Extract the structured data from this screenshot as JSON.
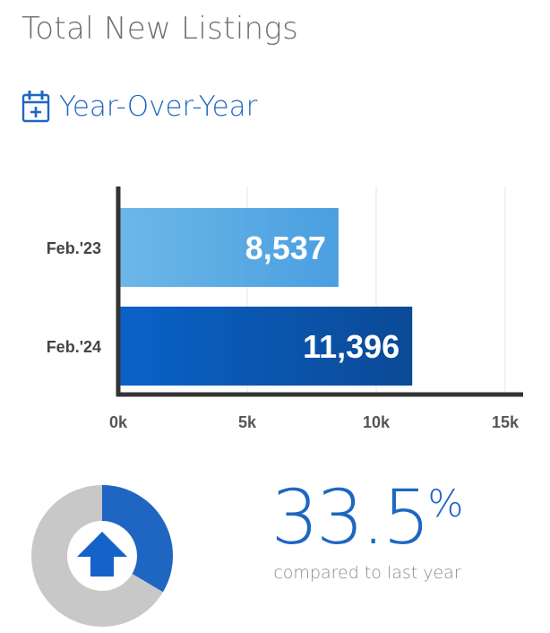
{
  "header": {
    "title": "Total New Listings",
    "subtitle": "Year-Over-Year",
    "subtitle_icon": "calendar-plus-icon"
  },
  "chart_data": {
    "type": "bar",
    "orientation": "horizontal",
    "categories": [
      "Feb.'23",
      "Feb.'24"
    ],
    "values": [
      8537,
      11396
    ],
    "value_labels": [
      "8,537",
      "11,396"
    ],
    "xlim": [
      0,
      15000
    ],
    "xticks": [
      0,
      5000,
      10000,
      15000
    ],
    "xtick_labels": [
      "0k",
      "5k",
      "10k",
      "15k"
    ],
    "grid": true,
    "colors": {
      "bar_2023": [
        "#6db7e8",
        "#4a9fe0"
      ],
      "bar_2024": [
        "#0a62c8",
        "#0b4a96"
      ]
    }
  },
  "summary": {
    "change_value": "33.5",
    "change_unit": "%",
    "change_fraction": 0.335,
    "direction_icon": "arrow-up-icon",
    "compare_text": "compared to last year",
    "colors": {
      "accent": "#1f66c2",
      "ring_bg": "#c8c8c8"
    }
  }
}
